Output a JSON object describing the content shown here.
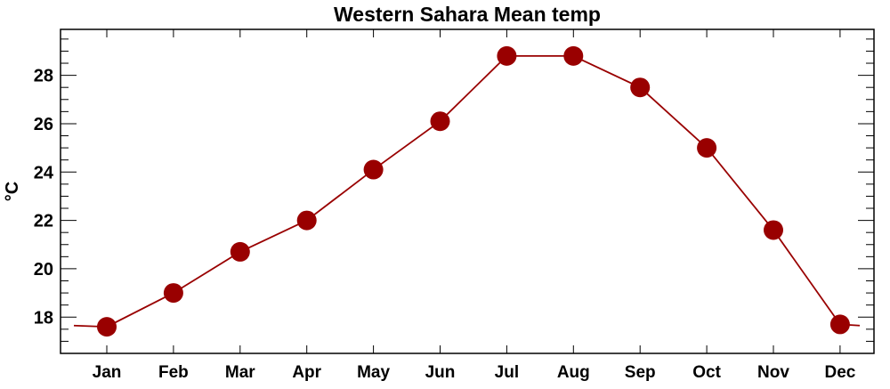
{
  "chart_data": {
    "type": "line",
    "title": "Western Sahara Mean temp",
    "xlabel": "",
    "ylabel": "°C",
    "categories": [
      "Jan",
      "Feb",
      "Mar",
      "Apr",
      "May",
      "Jun",
      "Jul",
      "Aug",
      "Sep",
      "Oct",
      "Nov",
      "Dec"
    ],
    "values": [
      17.6,
      19.0,
      20.7,
      22.0,
      24.1,
      26.1,
      28.8,
      28.8,
      27.5,
      25.0,
      21.6,
      17.7
    ],
    "ylim": [
      16.5,
      29.9
    ],
    "yticks": [
      18,
      20,
      22,
      24,
      26,
      28
    ],
    "ytick_labels": [
      "18",
      "20",
      "22",
      "24",
      "26",
      "28"
    ],
    "minor_tick_step": 0.5,
    "grid": false,
    "colors": {
      "series": "#990000",
      "axis": "#000000"
    }
  }
}
